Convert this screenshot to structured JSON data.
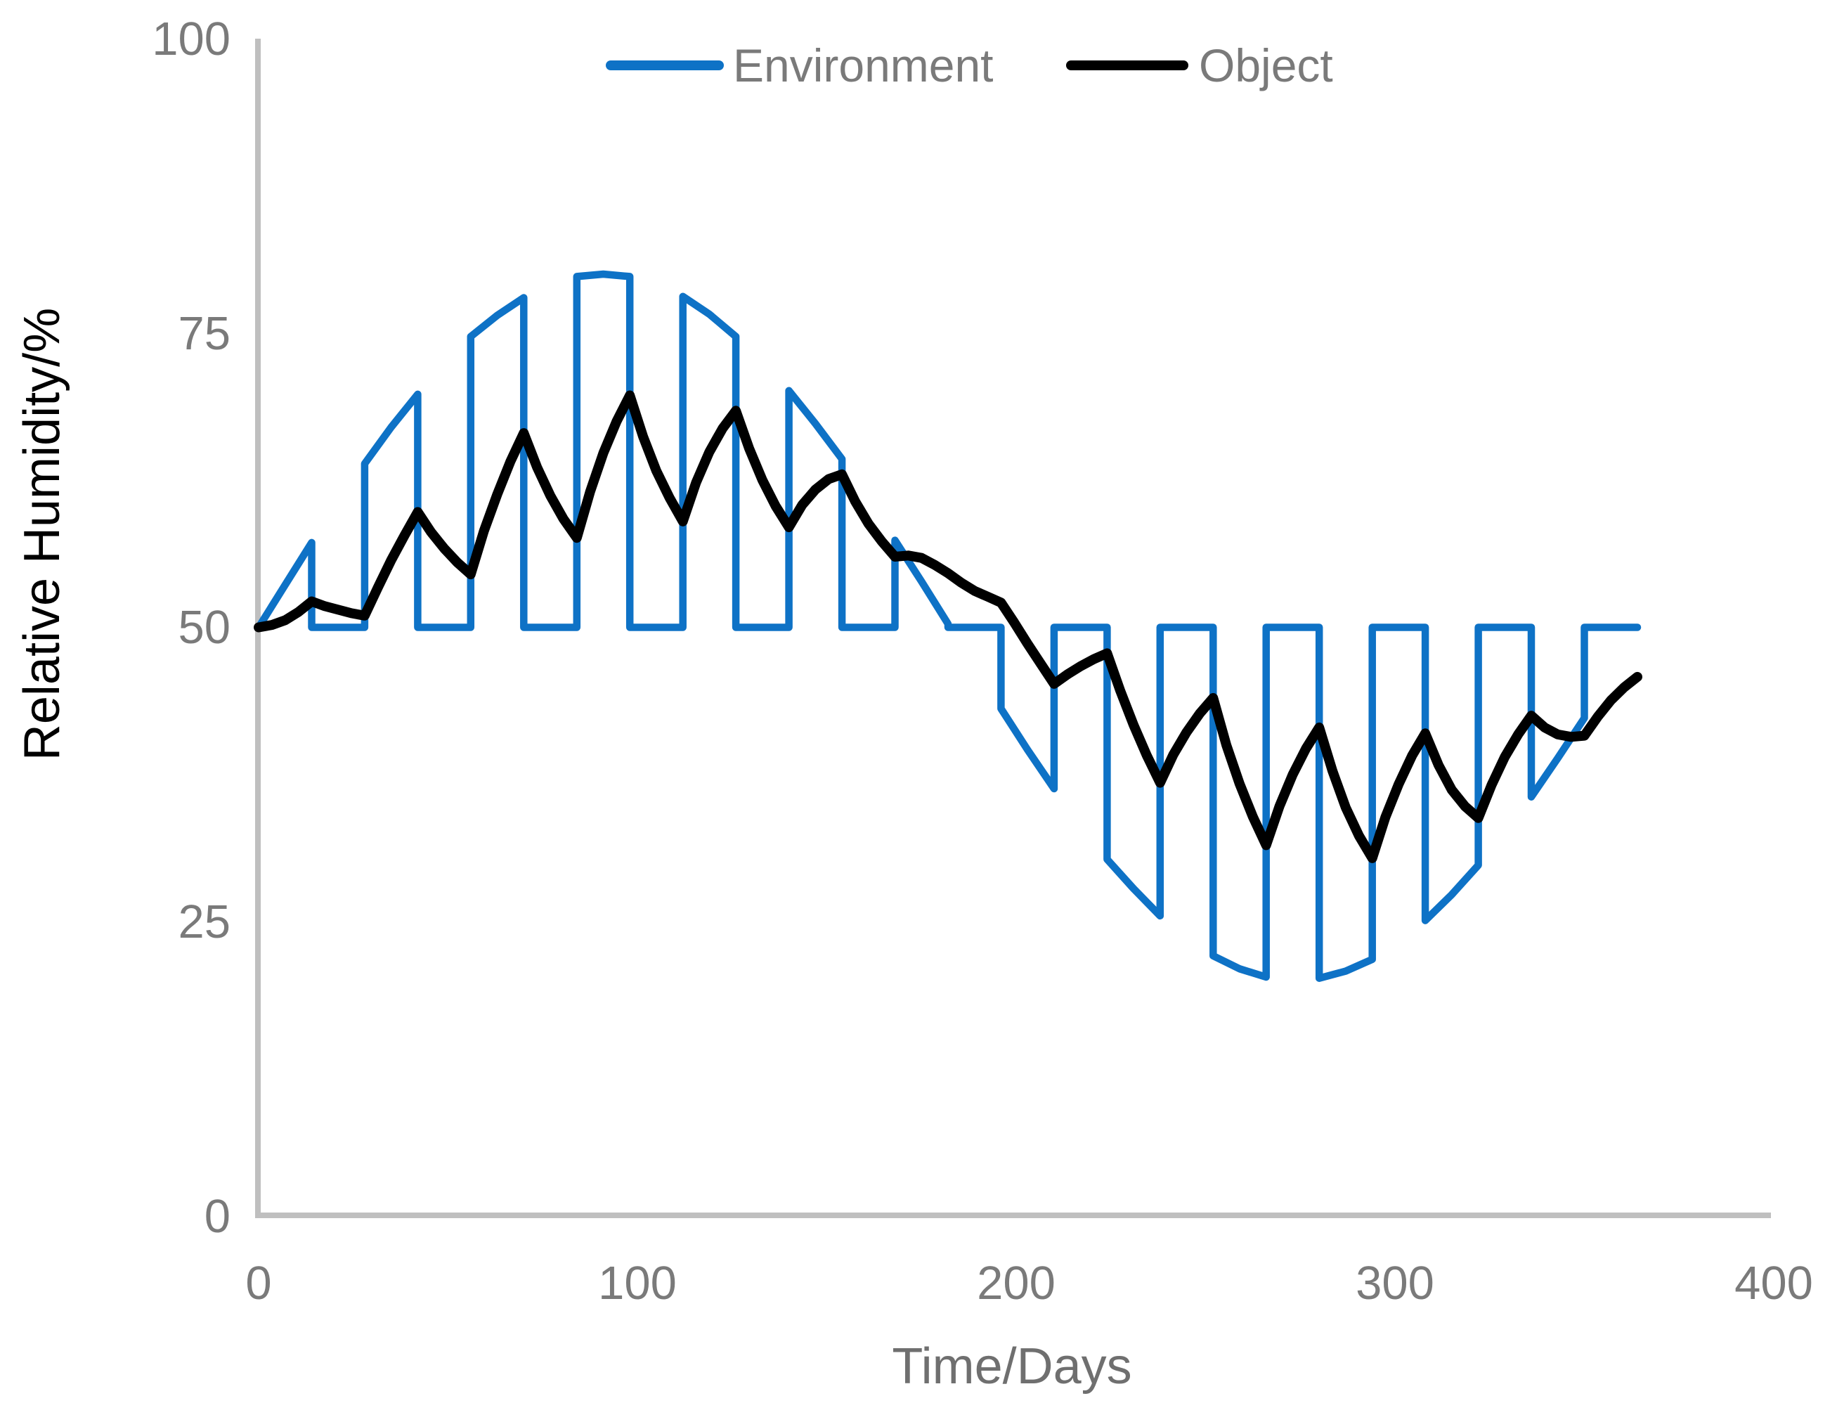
{
  "chart_data": {
    "type": "line",
    "title": "",
    "xlabel": "Time/Days",
    "ylabel": "Relative Humidity/%",
    "xlim": [
      0,
      400
    ],
    "ylim": [
      0,
      100
    ],
    "x_tick_labels": [
      "0",
      "100",
      "200",
      "300",
      "400"
    ],
    "y_tick_labels": [
      "100",
      "75",
      "50",
      "25",
      "0"
    ],
    "grid": false,
    "axis_color": "#BFBFBF",
    "tick_label_color": "#7A7A7A",
    "xlabel_color": "#6F6F6F",
    "ylabel_color": "#000000",
    "legend": {
      "position": "top-center",
      "entries": [
        {
          "label": "Environment",
          "color": "#0E72C6"
        },
        {
          "label": "Object",
          "color": "#000000"
        }
      ]
    },
    "series": [
      {
        "name": "Environment",
        "color": "#0E72C6",
        "stroke_width": 10.5,
        "points": [
          [
            0,
            50
          ],
          [
            7,
            53.6
          ],
          [
            14,
            57.2
          ],
          [
            14,
            50
          ],
          [
            28,
            50
          ],
          [
            28,
            63.9
          ],
          [
            35,
            67
          ],
          [
            42,
            69.8
          ],
          [
            42,
            50
          ],
          [
            56,
            50
          ],
          [
            56,
            74.7
          ],
          [
            63,
            76.5
          ],
          [
            70,
            78
          ],
          [
            70,
            50
          ],
          [
            84,
            50
          ],
          [
            84,
            79.8
          ],
          [
            91,
            80
          ],
          [
            98,
            79.8
          ],
          [
            98,
            50
          ],
          [
            112,
            50
          ],
          [
            112,
            78.1
          ],
          [
            119,
            76.6
          ],
          [
            126,
            74.7
          ],
          [
            126,
            50
          ],
          [
            140,
            50
          ],
          [
            140,
            70.1
          ],
          [
            147,
            67.3
          ],
          [
            154,
            64.3
          ],
          [
            154,
            50
          ],
          [
            168,
            50
          ],
          [
            168,
            57.4
          ],
          [
            175,
            53.9
          ],
          [
            182,
            50.3
          ],
          [
            182,
            50
          ],
          [
            196,
            50
          ],
          [
            196,
            43.1
          ],
          [
            203,
            39.6
          ],
          [
            210,
            36.3
          ],
          [
            210,
            50
          ],
          [
            224,
            50
          ],
          [
            224,
            30.3
          ],
          [
            231,
            27.8
          ],
          [
            238,
            25.5
          ],
          [
            238,
            50
          ],
          [
            252,
            50
          ],
          [
            252,
            22.1
          ],
          [
            259,
            21
          ],
          [
            266,
            20.3
          ],
          [
            266,
            50
          ],
          [
            280,
            50
          ],
          [
            280,
            20.2
          ],
          [
            287,
            20.8
          ],
          [
            294,
            21.8
          ],
          [
            294,
            50
          ],
          [
            308,
            50
          ],
          [
            308,
            25.1
          ],
          [
            315,
            27.3
          ],
          [
            322,
            29.8
          ],
          [
            322,
            50
          ],
          [
            336,
            50
          ],
          [
            336,
            35.6
          ],
          [
            343,
            38.9
          ],
          [
            350,
            42.3
          ],
          [
            350,
            50
          ],
          [
            364,
            50
          ]
        ]
      },
      {
        "name": "Object",
        "color": "#000000",
        "stroke_width": 14,
        "points": [
          [
            0,
            50
          ],
          [
            3.5,
            50.2
          ],
          [
            7,
            50.6
          ],
          [
            10.5,
            51.3
          ],
          [
            14,
            52.2
          ],
          [
            17.5,
            51.8
          ],
          [
            21,
            51.5
          ],
          [
            24.5,
            51.2
          ],
          [
            28,
            51
          ],
          [
            31.5,
            53.4
          ],
          [
            35,
            55.7
          ],
          [
            38.5,
            57.8
          ],
          [
            42,
            59.8
          ],
          [
            45.5,
            58.1
          ],
          [
            49,
            56.7
          ],
          [
            52.5,
            55.5
          ],
          [
            56,
            54.5
          ],
          [
            59.5,
            58.2
          ],
          [
            63,
            61.3
          ],
          [
            66.5,
            64.1
          ],
          [
            70,
            66.5
          ],
          [
            73.5,
            63.6
          ],
          [
            77,
            61.2
          ],
          [
            80.5,
            59.2
          ],
          [
            84,
            57.6
          ],
          [
            87.5,
            61.5
          ],
          [
            91,
            64.8
          ],
          [
            94.5,
            67.5
          ],
          [
            98,
            69.7
          ],
          [
            101.5,
            66.2
          ],
          [
            105,
            63.3
          ],
          [
            108.5,
            61
          ],
          [
            112,
            59
          ],
          [
            115.5,
            62.3
          ],
          [
            119,
            64.9
          ],
          [
            122.5,
            66.9
          ],
          [
            126,
            68.4
          ],
          [
            129.5,
            65.2
          ],
          [
            133,
            62.5
          ],
          [
            136.5,
            60.3
          ],
          [
            140,
            58.5
          ],
          [
            143.5,
            60.4
          ],
          [
            147,
            61.7
          ],
          [
            150.5,
            62.6
          ],
          [
            154,
            63
          ],
          [
            157.5,
            60.7
          ],
          [
            161,
            58.8
          ],
          [
            164.5,
            57.3
          ],
          [
            168,
            56
          ],
          [
            171.5,
            56.1
          ],
          [
            175,
            55.9
          ],
          [
            178.5,
            55.3
          ],
          [
            182,
            54.6
          ],
          [
            185.5,
            53.8
          ],
          [
            189,
            53.1
          ],
          [
            192.5,
            52.6
          ],
          [
            196,
            52.1
          ],
          [
            199.5,
            50.4
          ],
          [
            203,
            48.6
          ],
          [
            206.5,
            46.9
          ],
          [
            210,
            45.2
          ],
          [
            213.5,
            46
          ],
          [
            217,
            46.7
          ],
          [
            220.5,
            47.3
          ],
          [
            224,
            47.8
          ],
          [
            227.5,
            44.6
          ],
          [
            231,
            41.7
          ],
          [
            234.5,
            39.1
          ],
          [
            238,
            36.8
          ],
          [
            241.5,
            39.2
          ],
          [
            245,
            41.1
          ],
          [
            248.5,
            42.7
          ],
          [
            252,
            44
          ],
          [
            255.5,
            40
          ],
          [
            259,
            36.7
          ],
          [
            262.5,
            33.9
          ],
          [
            266,
            31.5
          ],
          [
            269.5,
            34.8
          ],
          [
            273,
            37.5
          ],
          [
            276.5,
            39.7
          ],
          [
            280,
            41.5
          ],
          [
            283.5,
            37.8
          ],
          [
            287,
            34.7
          ],
          [
            290.5,
            32.3
          ],
          [
            294,
            30.4
          ],
          [
            297.5,
            33.9
          ],
          [
            301,
            36.7
          ],
          [
            304.5,
            39.1
          ],
          [
            308,
            41
          ],
          [
            311.5,
            38.3
          ],
          [
            315,
            36.2
          ],
          [
            318.5,
            34.8
          ],
          [
            322,
            33.8
          ],
          [
            325.5,
            36.6
          ],
          [
            329,
            39
          ],
          [
            332.5,
            40.9
          ],
          [
            336,
            42.5
          ],
          [
            339.5,
            41.5
          ],
          [
            343,
            40.9
          ],
          [
            346.5,
            40.7
          ],
          [
            350,
            40.8
          ],
          [
            353.5,
            42.4
          ],
          [
            357,
            43.8
          ],
          [
            360.5,
            44.9
          ],
          [
            364,
            45.8
          ]
        ]
      }
    ]
  }
}
